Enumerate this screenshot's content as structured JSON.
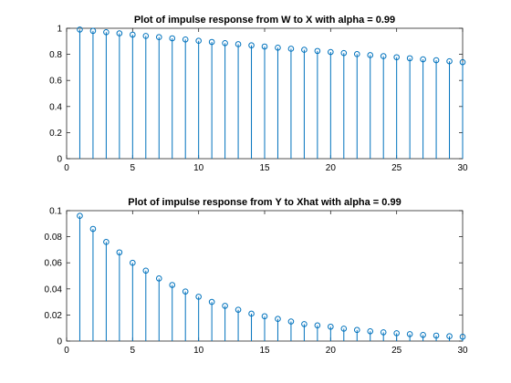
{
  "chart_data": [
    {
      "type": "stem",
      "title": "Plot of impulse response from W to X with alpha = 0.99",
      "xlim": [
        0,
        30
      ],
      "ylim": [
        0,
        1
      ],
      "xticks": [
        0,
        5,
        10,
        15,
        20,
        25,
        30
      ],
      "xtick_labels": [
        "0",
        "5",
        "10",
        "15",
        "20",
        "25",
        "30"
      ],
      "yticks": [
        0,
        0.2,
        0.4,
        0.6,
        0.8,
        1
      ],
      "ytick_labels": [
        "0",
        "0.2",
        "0.4",
        "0.6",
        "0.8",
        "1"
      ],
      "color": "#0072bd",
      "grid": false,
      "x": [
        1,
        2,
        3,
        4,
        5,
        6,
        7,
        8,
        9,
        10,
        11,
        12,
        13,
        14,
        15,
        16,
        17,
        18,
        19,
        20,
        21,
        22,
        23,
        24,
        25,
        26,
        27,
        28,
        29,
        30
      ],
      "values": [
        0.99,
        0.98,
        0.97,
        0.961,
        0.951,
        0.941,
        0.932,
        0.923,
        0.914,
        0.904,
        0.895,
        0.886,
        0.878,
        0.869,
        0.86,
        0.851,
        0.843,
        0.835,
        0.826,
        0.818,
        0.81,
        0.802,
        0.794,
        0.786,
        0.778,
        0.77,
        0.762,
        0.755,
        0.747,
        0.74
      ]
    },
    {
      "type": "stem",
      "title": "Plot of impulse response from Y to Xhat with alpha = 0.99",
      "xlim": [
        0,
        30
      ],
      "ylim": [
        0,
        0.1
      ],
      "xticks": [
        0,
        5,
        10,
        15,
        20,
        25,
        30
      ],
      "xtick_labels": [
        "0",
        "5",
        "10",
        "15",
        "20",
        "25",
        "30"
      ],
      "yticks": [
        0,
        0.02,
        0.04,
        0.06,
        0.08,
        0.1
      ],
      "ytick_labels": [
        "0",
        "0.02",
        "0.04",
        "0.06",
        "0.08",
        "0.1"
      ],
      "color": "#0072bd",
      "grid": false,
      "x": [
        1,
        2,
        3,
        4,
        5,
        6,
        7,
        8,
        9,
        10,
        11,
        12,
        13,
        14,
        15,
        16,
        17,
        18,
        19,
        20,
        21,
        22,
        23,
        24,
        25,
        26,
        27,
        28,
        29,
        30
      ],
      "values": [
        0.096,
        0.086,
        0.076,
        0.068,
        0.06,
        0.054,
        0.048,
        0.043,
        0.038,
        0.034,
        0.03,
        0.027,
        0.024,
        0.021,
        0.019,
        0.017,
        0.015,
        0.013,
        0.012,
        0.011,
        0.0095,
        0.0085,
        0.0075,
        0.0067,
        0.006,
        0.0053,
        0.0047,
        0.0042,
        0.0037,
        0.0033
      ]
    }
  ]
}
